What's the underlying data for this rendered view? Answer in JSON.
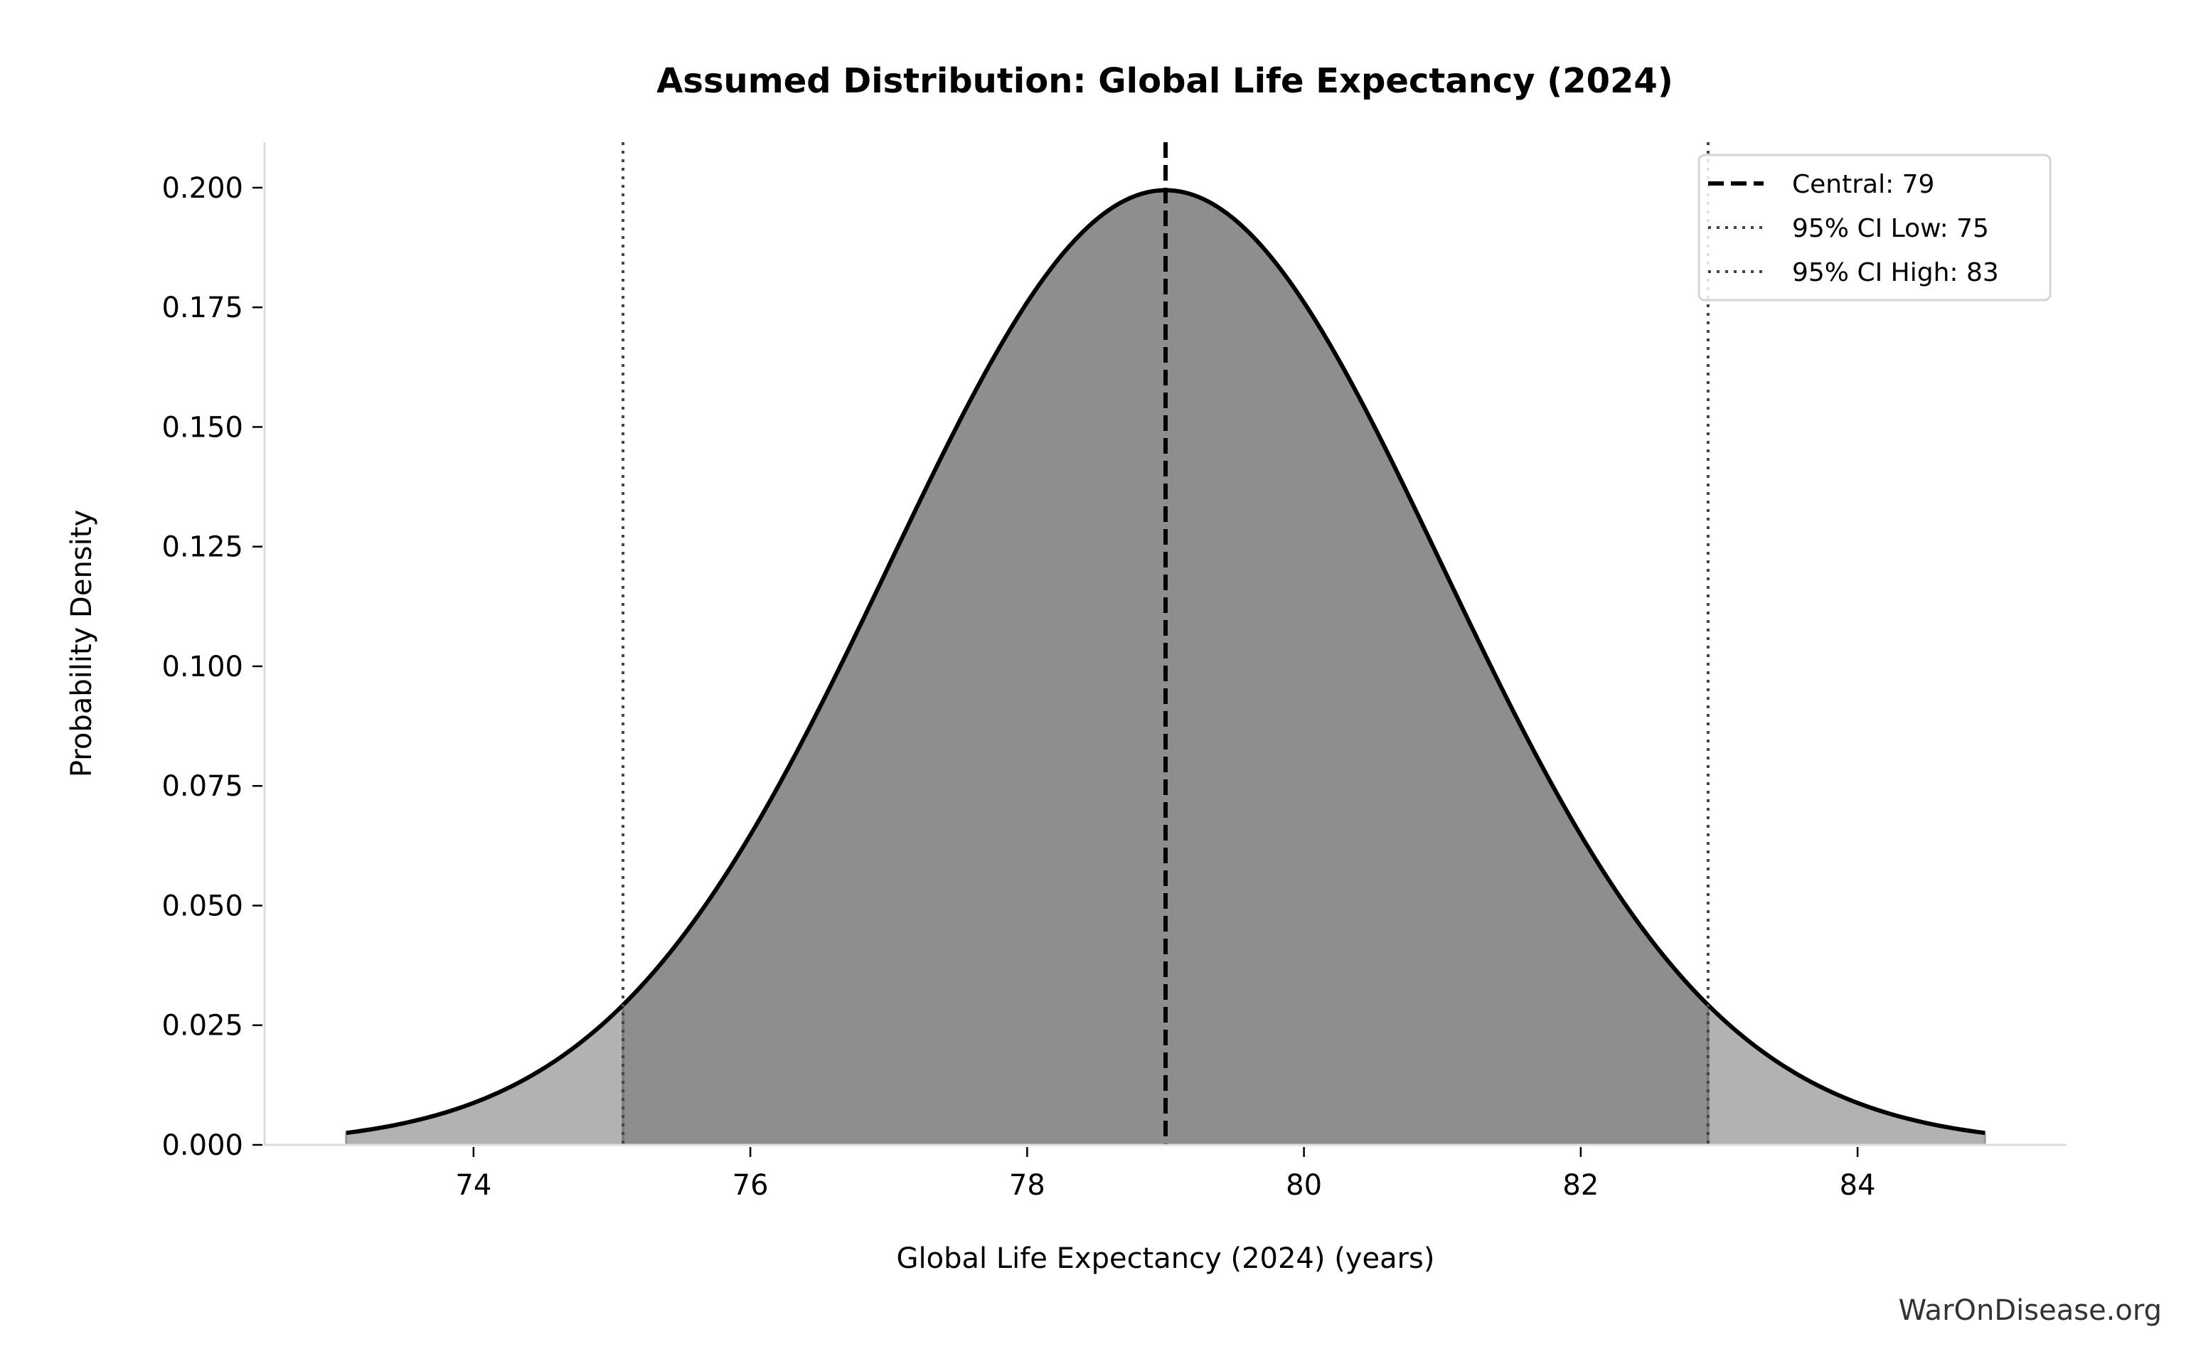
{
  "chart_data": {
    "type": "area",
    "title": "Assumed Distribution: Global Life Expectancy (2024)",
    "xlabel": "Global Life Expectancy (2024) (years)",
    "ylabel": "Probability Density",
    "distribution": {
      "kind": "normal",
      "mean": 79,
      "sd": 2
    },
    "curve_range": [
      73.08,
      84.92
    ],
    "ci": [
      75.08,
      82.92
    ],
    "central": 79,
    "xlim": [
      72.49,
      85.51
    ],
    "ylim": [
      0,
      0.2095
    ],
    "xticks": [
      74,
      76,
      78,
      80,
      82,
      84
    ],
    "xtick_labels": [
      "74",
      "76",
      "78",
      "80",
      "82",
      "84"
    ],
    "yticks": [
      0,
      0.025,
      0.05,
      0.075,
      0.1,
      0.125,
      0.15,
      0.175,
      0.2
    ],
    "ytick_labels": [
      "0.000",
      "0.025",
      "0.050",
      "0.075",
      "0.100",
      "0.125",
      "0.150",
      "0.175",
      "0.200"
    ],
    "grid": false,
    "legend_position": "top-right",
    "legend": [
      {
        "label": "Central: 79",
        "style": "dashed",
        "color": "#000000"
      },
      {
        "label": "95% CI Low: 75",
        "style": "dotted",
        "color": "#444444"
      },
      {
        "label": "95% CI High: 83",
        "style": "dotted",
        "color": "#444444"
      }
    ],
    "colors": {
      "ci_fill": "#8e8e8e",
      "tail_fill": "#b2b2b2",
      "curve": "#000000"
    }
  },
  "watermark": "WarOnDisease.org"
}
